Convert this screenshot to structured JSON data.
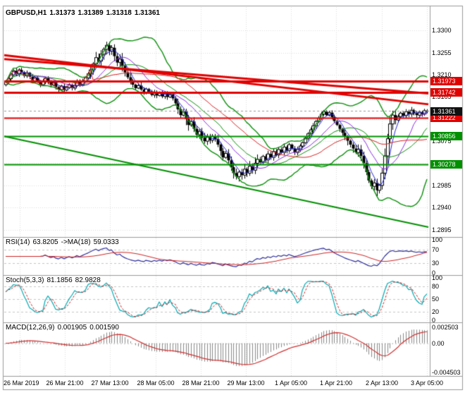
{
  "chart_data": {
    "type": "candlestick",
    "symbol": "GBPUSD",
    "timeframe": "H1",
    "main": {
      "legend": {
        "symbol": "GBPUSD,H1",
        "open": "1.31373",
        "high": "1.31389",
        "low": "1.31318",
        "close": "1.31361"
      },
      "price_scale": {
        "top_price": 1.3345,
        "bottom_price": 1.288
      },
      "y_ticks": [
        "1.3300",
        "1.3255",
        "1.3210",
        "1.3165",
        "1.3120",
        "1.3075",
        "1.3030",
        "1.2985",
        "1.2940",
        "1.2895"
      ],
      "closes": [
        1.3195,
        1.3202,
        1.321,
        1.3218,
        1.3212,
        1.322,
        1.3215,
        1.3208,
        1.3214,
        1.3206,
        1.3198,
        1.3204,
        1.3196,
        1.319,
        1.3197,
        1.3203,
        1.3196,
        1.3189,
        1.3194,
        1.3185,
        1.318,
        1.3187,
        1.3179,
        1.3184,
        1.319,
        1.3183,
        1.3188,
        1.3195,
        1.3189,
        1.3196,
        1.3204,
        1.3212,
        1.322,
        1.3232,
        1.3245,
        1.3238,
        1.3252,
        1.3262,
        1.327,
        1.3258,
        1.3265,
        1.3248,
        1.3235,
        1.3242,
        1.3228,
        1.3215,
        1.3205,
        1.3196,
        1.319,
        1.3183,
        1.3188,
        1.318,
        1.3174,
        1.3181,
        1.3176,
        1.3169,
        1.3175,
        1.3168,
        1.3173,
        1.3166,
        1.3172,
        1.3165,
        1.317,
        1.3162,
        1.3152,
        1.314,
        1.3128,
        1.3135,
        1.312,
        1.3108,
        1.3115,
        1.31,
        1.3088,
        1.3095,
        1.3082,
        1.3075,
        1.3083,
        1.3077,
        1.3085,
        1.3079,
        1.3068,
        1.3055,
        1.3042,
        1.305,
        1.3036,
        1.3022,
        1.301,
        1.3003,
        1.3012,
        1.3006,
        1.3018,
        1.301,
        1.3024,
        1.3016,
        1.303,
        1.3038,
        1.3032,
        1.3044,
        1.3037,
        1.3049,
        1.3042,
        1.3054,
        1.3047,
        1.3058,
        1.3052,
        1.3063,
        1.3056,
        1.3068,
        1.306,
        1.3052,
        1.3058,
        1.3065,
        1.3072,
        1.3081,
        1.309,
        1.3098,
        1.3106,
        1.3115,
        1.3122,
        1.313,
        1.3135,
        1.3128,
        1.3133,
        1.3124,
        1.3116,
        1.3108,
        1.31,
        1.3092,
        1.3084,
        1.3076,
        1.3068,
        1.306,
        1.3052,
        1.3058,
        1.3045,
        1.303,
        1.3012,
        1.2995,
        1.2983,
        1.299,
        1.2975,
        1.2985,
        1.301,
        1.3045,
        1.308,
        1.311,
        1.3128,
        1.3118,
        1.3125,
        1.3132,
        1.3127,
        1.3135,
        1.313,
        1.3138,
        1.3132,
        1.3128,
        1.3134,
        1.313,
        1.3137,
        1.31361
      ],
      "first_open": 1.319,
      "overlays": {
        "bollinger": {
          "period": 20,
          "deviation": 2,
          "color": "#0b8f0b"
        },
        "moving_averages": [
          {
            "period": 5,
            "color": "#2424d8"
          },
          {
            "period": 13,
            "color": "#8a2be2"
          },
          {
            "period": 34,
            "color": "#d82424"
          }
        ]
      },
      "horizontal_lines": [
        {
          "price": 1.31973,
          "label": "1.31973",
          "color": "#e00000",
          "width": 3
        },
        {
          "price": 1.31742,
          "label": "1.31742",
          "color": "#e00000",
          "width": 3
        },
        {
          "price": 1.31222,
          "label": "1.31222",
          "color": "#e00000",
          "width": 2
        },
        {
          "price": 1.30856,
          "label": "1.30856",
          "color": "#009000",
          "width": 2
        },
        {
          "price": 1.30278,
          "label": "1.30278",
          "color": "#009000",
          "width": 2
        }
      ],
      "trendlines": [
        {
          "x1": 0,
          "p1": 1.325,
          "x2": 1,
          "p2": 1.315,
          "color": "#e00000",
          "width": 3
        },
        {
          "x1": 0,
          "p1": 1.3242,
          "x2": 1,
          "p2": 1.3172,
          "color": "#e00000",
          "width": 3
        },
        {
          "x1": 0,
          "p1": 1.3085,
          "x2": 1,
          "p2": 1.29,
          "color": "#009000",
          "width": 2
        }
      ],
      "current_price": {
        "value": "1.31361",
        "price": 1.31361,
        "box_bg": "#111111"
      }
    },
    "x_ticks": [
      "26 Mar 2019",
      "26 Mar 21:00",
      "27 Mar 13:00",
      "28 Mar 05:00",
      "28 Mar 21:00",
      "29 Mar 13:00",
      "1 Apr 05:00",
      "1 Apr 21:00",
      "2 Apr 13:00",
      "3 Apr 05:00"
    ],
    "rsi": {
      "name": "RSI(14)",
      "value": "63.8205",
      "ma_name": "->MA(18)",
      "ma_value": "59.0333",
      "period": 14,
      "ma_period": 18,
      "ticks": [
        "100",
        "70",
        "30",
        "0"
      ],
      "levels": [
        70,
        30
      ],
      "colors": {
        "rsi": "#30309c",
        "ma": "#cc2222"
      }
    },
    "stoch": {
      "name": "Stoch(5,3,3)",
      "k_value": "81.1856",
      "d_value": "82.9828",
      "k_period": 5,
      "d_period": 3,
      "slowing": 3,
      "ticks": [
        "100",
        "80",
        "50",
        "20",
        "0"
      ],
      "levels": [
        80,
        50,
        20
      ],
      "colors": {
        "k": "#00aab4",
        "d": "#cc2222"
      }
    },
    "macd": {
      "name": "MACD(12,26,9)",
      "macd_value": "0.001905",
      "signal_value": "0.001590",
      "fast": 12,
      "slow": 26,
      "signal": 9,
      "ticks": [
        "0.002503",
        "0.00",
        "-0.004503"
      ],
      "levels": [
        0
      ],
      "range": {
        "max": 0.0028,
        "min": -0.00475
      },
      "colors": {
        "hist": "#888888",
        "signal": "#d03030"
      }
    }
  }
}
